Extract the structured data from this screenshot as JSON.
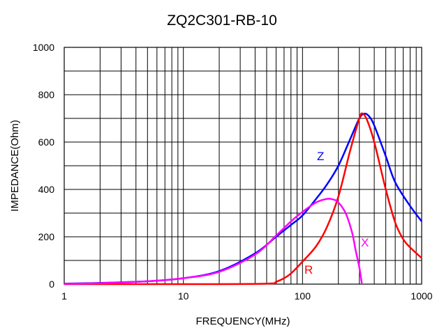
{
  "chart_data": {
    "type": "line",
    "title": "ZQ2C301-RB-10",
    "xlabel": "FREQUENCY(MHz)",
    "ylabel": "IMPEDANCE(Ohm)",
    "xscale": "log",
    "xlim": [
      1,
      1000
    ],
    "ylim": [
      0,
      1000
    ],
    "x_ticks": [
      "1",
      "10",
      "100",
      "1000"
    ],
    "y_ticks": [
      "0",
      "200",
      "400",
      "600",
      "800",
      "1000"
    ],
    "grid": true,
    "series": [
      {
        "name": "Z",
        "color": "#0000ff",
        "x": [
          1,
          2,
          5,
          10,
          20,
          40,
          60,
          80,
          100,
          130,
          160,
          200,
          250,
          300,
          330,
          360,
          400,
          500,
          600,
          800,
          1000
        ],
        "y": [
          2,
          5,
          12,
          25,
          55,
          130,
          200,
          250,
          290,
          360,
          420,
          500,
          610,
          700,
          720,
          710,
          670,
          540,
          430,
          330,
          265
        ]
      },
      {
        "name": "R",
        "color": "#ff0000",
        "x": [
          1,
          10,
          50,
          60,
          70,
          80,
          100,
          130,
          160,
          200,
          250,
          300,
          320,
          350,
          400,
          500,
          600,
          700,
          800,
          1000
        ],
        "y": [
          0,
          0,
          2,
          10,
          25,
          45,
          95,
          160,
          240,
          370,
          560,
          700,
          720,
          690,
          600,
          400,
          260,
          190,
          155,
          110
        ]
      },
      {
        "name": "X",
        "color": "#ff00ff",
        "x": [
          1,
          2,
          5,
          10,
          20,
          40,
          60,
          80,
          100,
          130,
          160,
          180,
          200,
          230,
          260,
          280,
          300,
          315
        ],
        "y": [
          1,
          4,
          12,
          25,
          52,
          125,
          205,
          265,
          305,
          345,
          360,
          358,
          345,
          300,
          220,
          140,
          70,
          0
        ]
      }
    ]
  }
}
